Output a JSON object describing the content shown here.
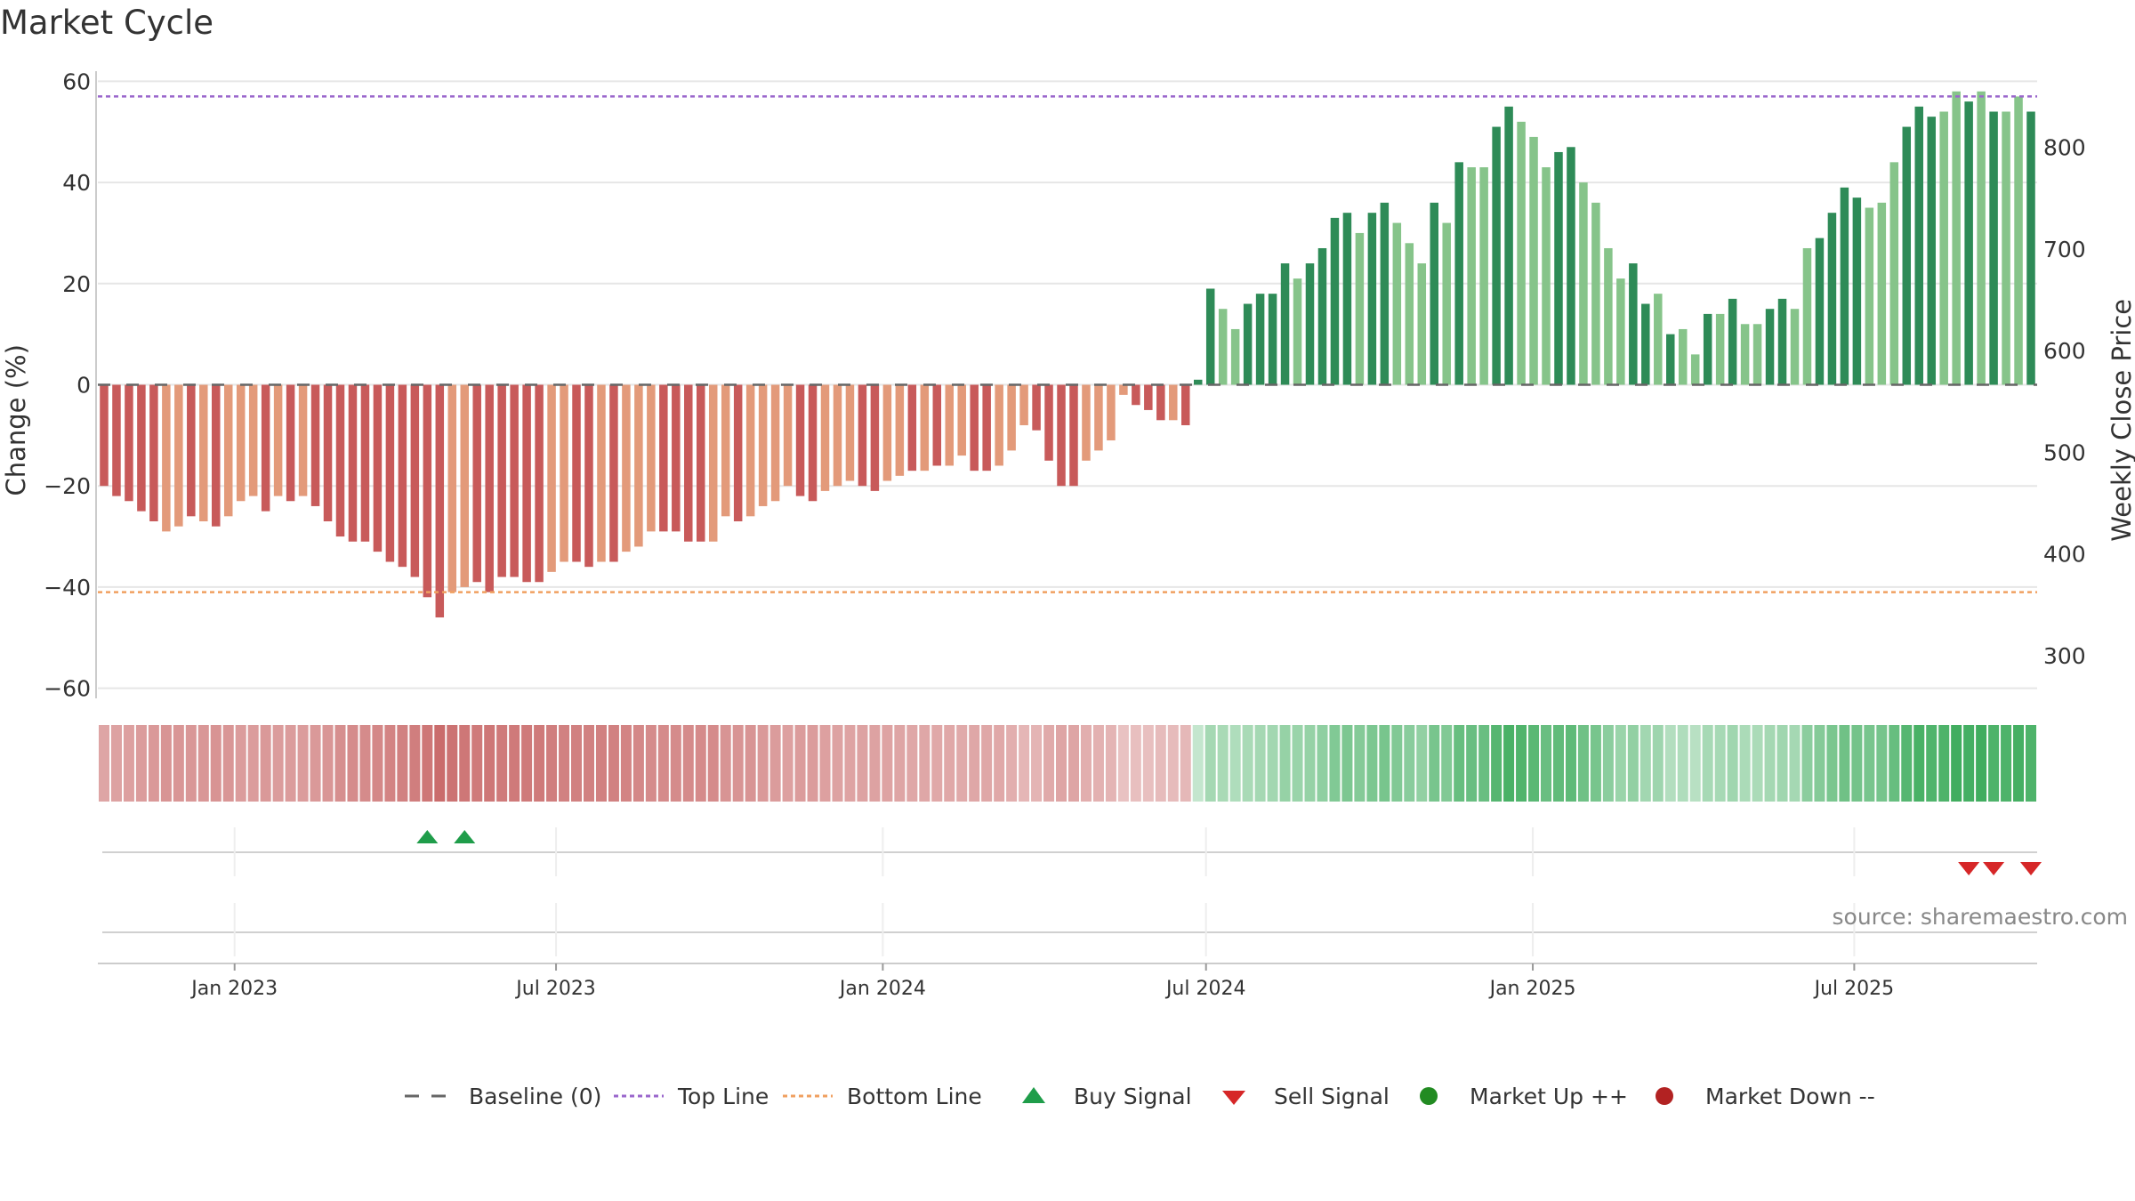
{
  "title": "Market Cycle",
  "source": "source: sharemaestro.com",
  "colors": {
    "neg_dark": "#c85a5a",
    "neg_light": "#e39a7a",
    "pos_dark": "#2e8b57",
    "pos_light": "#86c48a",
    "top_line": "#9a66cc",
    "bottom_line": "#f0a060",
    "buy": "#1f9d4a",
    "sell": "#d62728",
    "market_up": "#228b22",
    "market_down": "#b22222",
    "baseline": "#666666",
    "grid": "#e6e6e6"
  },
  "chart_data": {
    "type": "bar",
    "title": "Market Cycle",
    "ylabel": "Change (%)",
    "y2label": "Weekly Close Price",
    "ylim": [
      -62,
      62
    ],
    "yticks": [
      60,
      40,
      20,
      0,
      -20,
      -40,
      -60
    ],
    "ytick_labels": [
      "60",
      "40",
      "20",
      "0",
      "−20",
      "−40",
      "−60"
    ],
    "y2lim": [
      258,
      875
    ],
    "y2ticks": [
      800,
      700,
      600,
      500,
      400,
      300
    ],
    "top_line": 57,
    "bottom_line": -41,
    "start_date": "2022-10-16",
    "x_ticks": [
      {
        "label": "Jan 2023",
        "date": "2023-01-01"
      },
      {
        "label": "Jul 2023",
        "date": "2023-07-01"
      },
      {
        "label": "Jan 2024",
        "date": "2024-01-01"
      },
      {
        "label": "Jul 2024",
        "date": "2024-07-01"
      },
      {
        "label": "Jan 2025",
        "date": "2025-01-01"
      },
      {
        "label": "Jul 2025",
        "date": "2025-07-01"
      }
    ],
    "values": [
      -20,
      -22,
      -23,
      -25,
      -27,
      -29,
      -28,
      -26,
      -27,
      -28,
      -26,
      -23,
      -22,
      -25,
      -22,
      -23,
      -22,
      -24,
      -27,
      -30,
      -31,
      -31,
      -33,
      -35,
      -36,
      -38,
      -42,
      -46,
      -41,
      -40,
      -39,
      -41,
      -38,
      -38,
      -39,
      -39,
      -37,
      -35,
      -35,
      -36,
      -35,
      -35,
      -33,
      -32,
      -29,
      -29,
      -29,
      -31,
      -31,
      -31,
      -26,
      -27,
      -26,
      -24,
      -23,
      -20,
      -22,
      -23,
      -21,
      -20,
      -19,
      -20,
      -21,
      -19,
      -18,
      -17,
      -17,
      -16,
      -16,
      -14,
      -17,
      -17,
      -16,
      -13,
      -8,
      -9,
      -15,
      -20,
      -20,
      -15,
      -13,
      -11,
      -2,
      -4,
      -5,
      -7,
      -7,
      -8,
      1,
      19,
      15,
      11,
      16,
      18,
      18,
      24,
      21,
      24,
      27,
      33,
      34,
      30,
      34,
      36,
      32,
      28,
      24,
      36,
      32,
      44,
      43,
      43,
      51,
      55,
      52,
      49,
      43,
      46,
      47,
      40,
      36,
      27,
      21,
      24,
      16,
      18,
      10,
      11,
      6,
      14,
      14,
      17,
      12,
      12,
      15,
      17,
      15,
      27,
      29,
      34,
      39,
      37,
      35,
      36,
      44,
      51,
      55,
      53,
      54,
      58,
      56,
      58,
      54,
      54,
      57,
      54
    ],
    "shades": [
      1,
      1,
      1,
      1,
      1,
      0,
      0,
      1,
      0,
      1,
      0,
      0,
      0,
      1,
      0,
      1,
      0,
      1,
      1,
      1,
      1,
      1,
      1,
      1,
      1,
      1,
      1,
      1,
      0,
      0,
      1,
      1,
      1,
      1,
      1,
      1,
      0,
      0,
      1,
      1,
      0,
      1,
      0,
      0,
      0,
      1,
      1,
      1,
      1,
      0,
      0,
      1,
      0,
      0,
      0,
      0,
      1,
      1,
      0,
      0,
      0,
      1,
      1,
      0,
      0,
      1,
      0,
      1,
      0,
      0,
      1,
      1,
      0,
      0,
      0,
      1,
      1,
      1,
      1,
      0,
      0,
      0,
      0,
      1,
      1,
      1,
      0,
      1,
      1,
      1,
      0,
      0,
      1,
      1,
      1,
      1,
      0,
      1,
      1,
      1,
      1,
      0,
      1,
      1,
      0,
      0,
      0,
      1,
      0,
      1,
      0,
      0,
      1,
      1,
      0,
      0,
      0,
      1,
      1,
      0,
      0,
      0,
      0,
      1,
      1,
      0,
      1,
      0,
      0,
      1,
      0,
      1,
      0,
      0,
      1,
      1,
      0,
      0,
      1,
      1,
      1,
      1,
      0,
      0,
      0,
      1,
      1,
      1,
      0,
      0,
      1,
      0,
      1,
      0,
      0,
      1,
      0
    ],
    "strength": [
      0.45,
      0.47,
      0.48,
      0.5,
      0.52,
      0.55,
      0.54,
      0.53,
      0.53,
      0.55,
      0.54,
      0.5,
      0.5,
      0.52,
      0.5,
      0.5,
      0.5,
      0.52,
      0.54,
      0.58,
      0.6,
      0.6,
      0.62,
      0.64,
      0.66,
      0.68,
      0.72,
      0.78,
      0.74,
      0.72,
      0.7,
      0.72,
      0.7,
      0.7,
      0.7,
      0.7,
      0.68,
      0.66,
      0.66,
      0.66,
      0.66,
      0.66,
      0.64,
      0.62,
      0.6,
      0.6,
      0.6,
      0.6,
      0.6,
      0.6,
      0.55,
      0.55,
      0.55,
      0.52,
      0.5,
      0.48,
      0.5,
      0.5,
      0.48,
      0.47,
      0.46,
      0.47,
      0.47,
      0.46,
      0.45,
      0.44,
      0.44,
      0.43,
      0.43,
      0.42,
      0.44,
      0.44,
      0.43,
      0.4,
      0.35,
      0.36,
      0.42,
      0.45,
      0.45,
      0.4,
      0.38,
      0.36,
      0.28,
      0.3,
      0.3,
      0.32,
      0.32,
      0.34,
      0.2,
      0.35,
      0.33,
      0.3,
      0.33,
      0.35,
      0.36,
      0.42,
      0.4,
      0.42,
      0.45,
      0.52,
      0.54,
      0.5,
      0.54,
      0.56,
      0.52,
      0.48,
      0.44,
      0.56,
      0.52,
      0.64,
      0.63,
      0.63,
      0.72,
      0.78,
      0.75,
      0.7,
      0.63,
      0.67,
      0.68,
      0.6,
      0.56,
      0.47,
      0.4,
      0.44,
      0.36,
      0.38,
      0.28,
      0.3,
      0.26,
      0.34,
      0.34,
      0.37,
      0.32,
      0.32,
      0.35,
      0.37,
      0.35,
      0.47,
      0.5,
      0.55,
      0.6,
      0.58,
      0.56,
      0.57,
      0.64,
      0.72,
      0.78,
      0.75,
      0.76,
      0.82,
      0.8,
      0.82,
      0.76,
      0.76,
      0.8,
      0.76
    ],
    "buy_signals": [
      26,
      29
    ],
    "sell_signals": [
      150,
      152,
      155
    ]
  },
  "legend": [
    {
      "label": "Baseline (0)",
      "type": "dash-line"
    },
    {
      "label": "Top Line",
      "type": "dot-line-purple"
    },
    {
      "label": "Bottom Line",
      "type": "dot-line-orange"
    },
    {
      "label": "Buy Signal",
      "type": "tri-up"
    },
    {
      "label": "Sell Signal",
      "type": "tri-down"
    },
    {
      "label": "Market Up ++",
      "type": "dot-green"
    },
    {
      "label": "Market Down --",
      "type": "dot-red"
    }
  ]
}
